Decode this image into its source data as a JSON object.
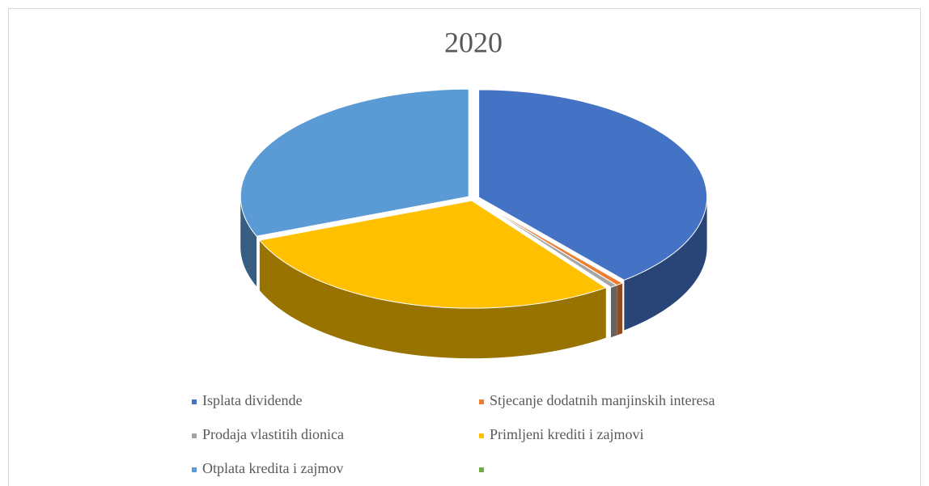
{
  "chart_data": {
    "type": "pie",
    "title": "2020",
    "categories": [
      "Isplata dividende",
      "Stjecanje dodatnih manjinskih interesa",
      "Prodaja vlastitih dionica",
      "Primljeni krediti i zajmovi",
      "Otplata kredita i zajmov",
      null
    ],
    "values": [
      39,
      0.5,
      0.5,
      29,
      31,
      0
    ],
    "colors": [
      "#4472c4",
      "#ed7d31",
      "#a5a5a5",
      "#ffc000",
      "#5b9bd5",
      "#70ad47"
    ],
    "legend": "bottom"
  }
}
